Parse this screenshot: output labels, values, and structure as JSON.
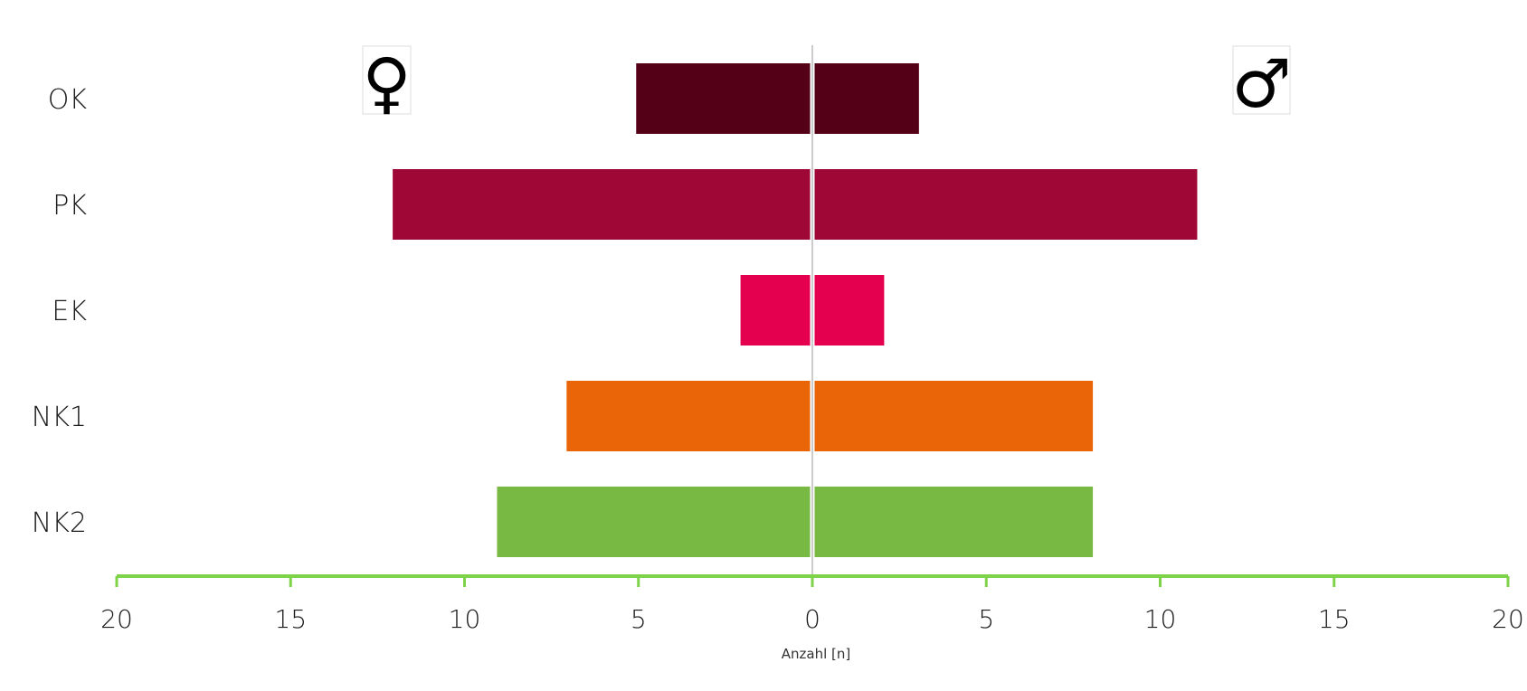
{
  "chart_data": {
    "type": "bar",
    "orientation": "horizontal-diverging",
    "categories": [
      "OK",
      "PK",
      "EK",
      "NK1",
      "NK2"
    ],
    "series": [
      {
        "icon": "female-symbol-icon",
        "side": "left",
        "values": [
          5,
          12,
          2,
          7,
          9
        ]
      },
      {
        "icon": "male-symbol-icon",
        "side": "right",
        "values": [
          3,
          11,
          2,
          8,
          8
        ]
      }
    ],
    "category_colors": [
      "#540016",
      "#9f0736",
      "#e4004f",
      "#ea6508",
      "#78b944"
    ],
    "xlabel": "Anzahl [n]",
    "xlim": [
      -20,
      20
    ],
    "xticks": [
      -20,
      -15,
      -10,
      -5,
      0,
      5,
      10,
      15,
      20
    ],
    "xtick_labels": [
      "20",
      "15",
      "10",
      "5",
      "0",
      "5",
      "10",
      "15",
      "20"
    ],
    "axis_color": "#7ed348",
    "center_line_color": "#cccccc",
    "female_symbol": "♀",
    "male_symbol": "♂",
    "grid": false
  }
}
